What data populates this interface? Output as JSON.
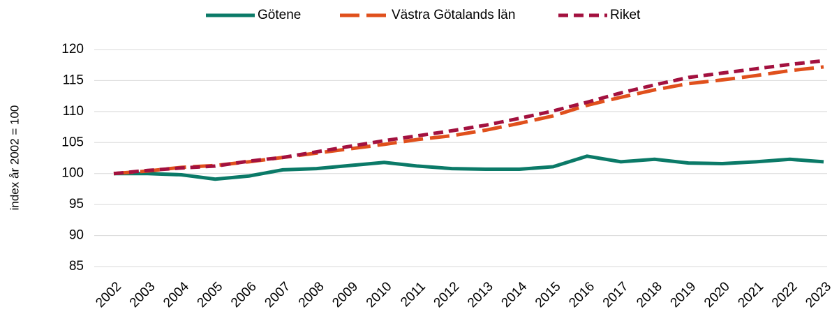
{
  "chart_data": {
    "type": "line",
    "y_label": "index år 2002 = 100",
    "categories": [
      "2002",
      "2003",
      "2004",
      "2005",
      "2006",
      "2007",
      "2008",
      "2009",
      "2010",
      "2011",
      "2012",
      "2013",
      "2014",
      "2015",
      "2016",
      "2017",
      "2018",
      "2019",
      "2020",
      "2021",
      "2022",
      "2023"
    ],
    "series": [
      {
        "name": "Götene",
        "color": "#0b7a68",
        "style": "solid",
        "values": [
          100,
          100,
          99.8,
          99.1,
          99.6,
          100.6,
          100.8,
          101.3,
          101.8,
          101.2,
          100.8,
          100.7,
          100.7,
          101.1,
          102.8,
          101.9,
          102.3,
          101.7,
          101.6,
          101.9,
          102.3,
          101.9
        ]
      },
      {
        "name": "Västra Götalands län",
        "color": "#e0501c",
        "style": "long-dash",
        "values": [
          100,
          100.4,
          101.0,
          101.3,
          101.9,
          102.6,
          103.3,
          104.0,
          104.7,
          105.5,
          106.1,
          107.0,
          108.1,
          109.3,
          111.0,
          112.3,
          113.5,
          114.5,
          115.1,
          115.8,
          116.6,
          117.2
        ]
      },
      {
        "name": "Riket",
        "color": "#a3113f",
        "style": "dash",
        "values": [
          100,
          100.5,
          100.9,
          101.2,
          102.0,
          102.6,
          103.5,
          104.4,
          105.3,
          106.1,
          106.9,
          107.8,
          108.9,
          110.1,
          111.5,
          113.0,
          114.3,
          115.5,
          116.2,
          116.9,
          117.6,
          118.2
        ]
      }
    ],
    "ylim": [
      85,
      120
    ],
    "yticks": [
      85,
      90,
      95,
      100,
      105,
      110,
      115,
      120
    ],
    "grid": true,
    "legend": "top"
  }
}
